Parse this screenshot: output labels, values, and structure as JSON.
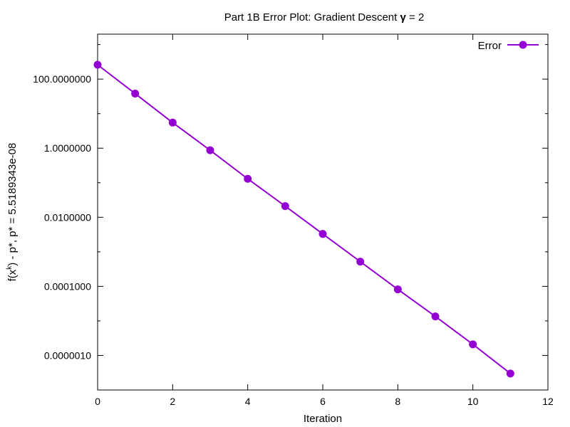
{
  "chart_data": {
    "type": "line",
    "title_main": "Part 1B Error Plot: Gradient Descent ",
    "title_symbol": "γ",
    "title_tail": " = 2",
    "xlabel": "Iteration",
    "ylabel_f": "f(x",
    "ylabel_k": "k",
    "ylabel_rest": ") - p*, p* = 5.5189343e-08",
    "xlim": [
      0,
      12
    ],
    "ylim": [
      1e-07,
      2000
    ],
    "yscale": "log",
    "grid": false,
    "legend_position": "top-right",
    "x_ticks": [
      0,
      2,
      4,
      6,
      8,
      10,
      12
    ],
    "x_tick_labels": [
      "0",
      "2",
      "4",
      "6",
      "8",
      "10",
      "12"
    ],
    "y_ticks": [
      100,
      1,
      0.01,
      0.0001,
      1e-06
    ],
    "y_tick_labels": [
      "100.0000000",
      "1.0000000",
      "0.0100000",
      "0.0001000",
      "0.0000010"
    ],
    "series": [
      {
        "name": "Error",
        "color": "#9400d3",
        "x": [
          0,
          1,
          2,
          3,
          4,
          5,
          6,
          7,
          8,
          9,
          10,
          11
        ],
        "y": [
          260,
          38,
          5.5,
          0.87,
          0.13,
          0.021,
          0.0033,
          0.00052,
          8.2e-05,
          1.35e-05,
          2.1e-06,
          3e-07
        ]
      }
    ]
  }
}
